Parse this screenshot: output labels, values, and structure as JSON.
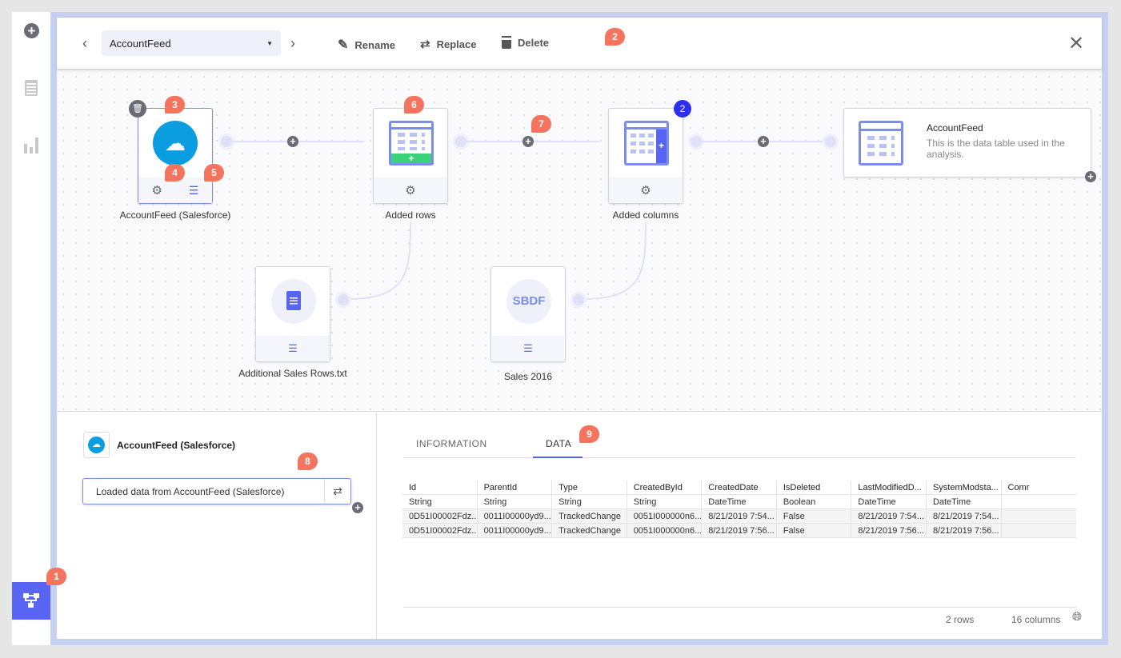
{
  "toolbar": {
    "dataset": "AccountFeed",
    "rename": "Rename",
    "replace": "Replace",
    "delete": "Delete"
  },
  "badges": [
    "1",
    "2",
    "3",
    "4",
    "5",
    "6",
    "7",
    "8",
    "9"
  ],
  "nodes": {
    "source": {
      "label": "AccountFeed (Salesforce)"
    },
    "added_rows": {
      "label": "Added rows"
    },
    "added_columns": {
      "label": "Added columns",
      "count": "2"
    },
    "result": {
      "title": "AccountFeed",
      "description": "This is the data table used in the analysis."
    },
    "additional": {
      "label": "Additional Sales Rows.txt"
    },
    "sales": {
      "label": "Sales 2016",
      "icon_text": "SBDF"
    }
  },
  "details": {
    "title": "AccountFeed (Salesforce)",
    "step": "Loaded data from AccountFeed (Salesforce)"
  },
  "tabs": [
    "INFORMATION",
    "DATA"
  ],
  "active_tab": "DATA",
  "table": {
    "columns": [
      "Id",
      "ParentId",
      "Type",
      "CreatedById",
      "CreatedDate",
      "IsDeleted",
      "LastModifiedD...",
      "SystemModsta...",
      "Comr"
    ],
    "types": [
      "String",
      "String",
      "String",
      "String",
      "DateTime",
      "Boolean",
      "DateTime",
      "DateTime",
      ""
    ],
    "rows": [
      [
        "0D51I00002Fdz...",
        "0011I00000yd9...",
        "TrackedChange",
        "0051I000000n6...",
        "8/21/2019 7:54...",
        "False",
        "8/21/2019 7:54...",
        "8/21/2019 7:54...",
        ""
      ],
      [
        "0D51I00002Fdz...",
        "0011I00000yd9...",
        "TrackedChange",
        "0051I000000n6...",
        "8/21/2019 7:56...",
        "False",
        "8/21/2019 7:56...",
        "8/21/2019 7:56...",
        ""
      ]
    ]
  },
  "footer": {
    "rows": "2 rows",
    "columns": "16 columns"
  },
  "colors": {
    "accent": "#5865f2",
    "badge": "#f57460",
    "salesforce": "#0a9ee0",
    "green": "#3cd27a",
    "node_icon": "#7b8cf0"
  }
}
